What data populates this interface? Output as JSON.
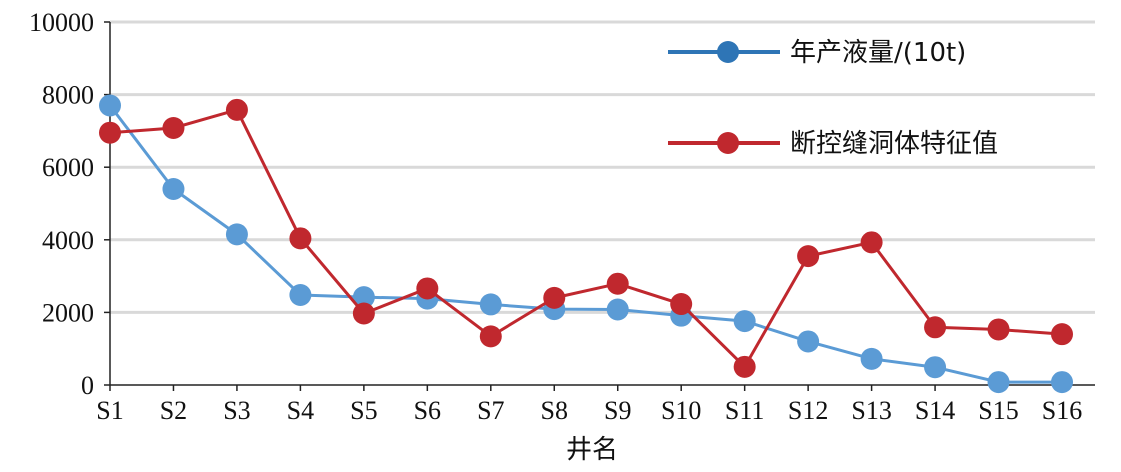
{
  "chart_data": {
    "type": "line",
    "title": "",
    "xlabel": "井名",
    "ylabel": "",
    "ylim": [
      0,
      10000
    ],
    "yticks": [
      0,
      2000,
      4000,
      6000,
      8000,
      10000
    ],
    "grid": "horizontal",
    "legend_position": "top-right",
    "categories": [
      "S1",
      "S2",
      "S3",
      "S4",
      "S5",
      "S6",
      "S7",
      "S8",
      "S9",
      "S10",
      "S11",
      "S12",
      "S13",
      "S14",
      "S15",
      "S16"
    ],
    "series": [
      {
        "name": "年产液量/(10t)",
        "color": "#5b9bd5",
        "legend_color": "#2e75b6",
        "values": [
          7700,
          5400,
          4150,
          2480,
          2420,
          2380,
          2220,
          2090,
          2080,
          1910,
          1760,
          1200,
          720,
          490,
          80,
          80
        ]
      },
      {
        "name": "断控缝洞体特征值",
        "color": "#c0282e",
        "legend_color": "#c0282e",
        "values": [
          6950,
          7080,
          7580,
          4040,
          1970,
          2660,
          1340,
          2400,
          2790,
          2230,
          500,
          3550,
          3930,
          1590,
          1530,
          1400
        ]
      }
    ]
  }
}
